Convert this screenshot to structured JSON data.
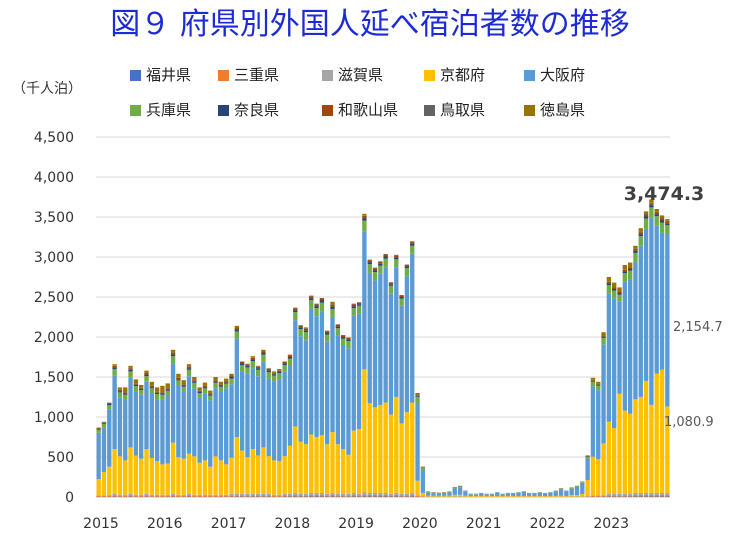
{
  "title": "図９ 府県別外国人延べ宿泊者数の推移",
  "unit_label": "（千人泊）",
  "colors": {
    "title": "#1d2bd6",
    "axis_text": "#333333",
    "grid": "#d9d9d9"
  },
  "legend": [
    {
      "name": "福井県",
      "color": "#4472c4"
    },
    {
      "name": "三重県",
      "color": "#ed7d31"
    },
    {
      "name": "滋賀県",
      "color": "#a5a5a5"
    },
    {
      "name": "京都府",
      "color": "#ffc000"
    },
    {
      "name": "大阪府",
      "color": "#5b9bd5"
    },
    {
      "name": "兵庫県",
      "color": "#70ad47"
    },
    {
      "name": "奈良県",
      "color": "#264478"
    },
    {
      "name": "和歌山県",
      "color": "#9e480e"
    },
    {
      "name": "鳥取県",
      "color": "#636363"
    },
    {
      "name": "徳島県",
      "color": "#997300"
    }
  ],
  "annotations": {
    "total_last": "3,474.3",
    "osaka_last": "2,154.7",
    "kyoto_last": "1,080.9"
  },
  "chart_data": {
    "type": "bar",
    "stacked": true,
    "ylim": [
      0,
      4500
    ],
    "yticks": [
      "0",
      "500",
      "1,000",
      "1,500",
      "2,000",
      "2,500",
      "3,000",
      "3,500",
      "4,000",
      "4,500"
    ],
    "ytick_values": [
      0,
      500,
      1000,
      1500,
      2000,
      2500,
      3000,
      3500,
      4000,
      4500
    ],
    "xticks": [
      "2015",
      "2016",
      "2017",
      "2018",
      "2019",
      "2020",
      "2021",
      "2022",
      "2023"
    ],
    "start": "2015-01",
    "bar_count": 108,
    "grid": "horizontal",
    "legend_position": "top",
    "series_order": [
      "福井県",
      "三重県",
      "滋賀県",
      "京都府",
      "大阪府",
      "兵庫県",
      "奈良県",
      "和歌山県",
      "鳥取県",
      "徳島県"
    ],
    "totals": [
      870,
      940,
      1180,
      1660,
      1370,
      1370,
      1640,
      1470,
      1400,
      1580,
      1440,
      1370,
      1390,
      1420,
      1840,
      1540,
      1460,
      1660,
      1500,
      1370,
      1430,
      1330,
      1500,
      1440,
      1480,
      1540,
      2140,
      1680,
      1650,
      1760,
      1640,
      1840,
      1610,
      1570,
      1600,
      1690,
      1780,
      2360,
      2150,
      2120,
      2510,
      2410,
      2480,
      2080,
      2440,
      2160,
      2010,
      1980,
      2400,
      2430,
      3540,
      2930,
      2830,
      2910,
      3000,
      2670,
      2990,
      2510,
      2890,
      3160,
      1300,
      380,
      70,
      60,
      50,
      60,
      70,
      120,
      140,
      80,
      40,
      40,
      50,
      40,
      40,
      60,
      40,
      50,
      50,
      60,
      70,
      50,
      50,
      60,
      50,
      60,
      80,
      110,
      80,
      120,
      140,
      190,
      520,
      1490,
      1440,
      2060,
      2750,
      2680,
      2620,
      2900,
      2930,
      3140,
      3360,
      3570,
      3720,
      3600,
      3520,
      3474
    ],
    "kyoto": [
      200,
      290,
      350,
      560,
      480,
      430,
      580,
      490,
      450,
      560,
      460,
      420,
      380,
      390,
      640,
      470,
      450,
      500,
      480,
      400,
      430,
      350,
      480,
      430,
      380,
      450,
      710,
      540,
      460,
      560,
      480,
      580,
      470,
      430,
      420,
      470,
      600,
      830,
      650,
      620,
      730,
      700,
      720,
      620,
      760,
      620,
      560,
      490,
      780,
      810,
      1540,
      1120,
      1070,
      1100,
      1130,
      990,
      1200,
      880,
      1020,
      1130,
      180,
      40,
      10,
      10,
      10,
      10,
      10,
      20,
      20,
      10,
      10,
      10,
      10,
      10,
      10,
      10,
      10,
      10,
      10,
      10,
      10,
      10,
      10,
      10,
      10,
      10,
      10,
      10,
      10,
      20,
      20,
      30,
      200,
      480,
      450,
      640,
      900,
      820,
      1250,
      1040,
      1000,
      1170,
      1200,
      1400,
      1100,
      1490,
      1540,
      1081
    ],
    "osaka": [
      580,
      560,
      720,
      920,
      740,
      760,
      870,
      800,
      800,
      840,
      800,
      770,
      810,
      850,
      990,
      890,
      840,
      970,
      850,
      810,
      840,
      830,
      850,
      860,
      950,
      920,
      1230,
      990,
      1040,
      1010,
      990,
      1070,
      970,
      990,
      1020,
      1060,
      1010,
      1330,
      1320,
      1300,
      1570,
      1510,
      1550,
      1280,
      1440,
      1360,
      1300,
      1330,
      1440,
      1440,
      1720,
      1630,
      1590,
      1640,
      1690,
      1510,
      1620,
      1470,
      1700,
      1860,
      960,
      280,
      40,
      30,
      30,
      30,
      40,
      80,
      90,
      50,
      20,
      20,
      30,
      20,
      20,
      40,
      20,
      30,
      30,
      40,
      50,
      30,
      30,
      40,
      30,
      40,
      60,
      80,
      60,
      80,
      100,
      140,
      270,
      880,
      860,
      1240,
      1600,
      1620,
      1150,
      1610,
      1680,
      1710,
      1890,
      1900,
      2340,
      1850,
      1710,
      2155
    ],
    "hyogo": [
      40,
      40,
      50,
      80,
      60,
      60,
      80,
      70,
      60,
      70,
      70,
      70,
      60,
      60,
      90,
      70,
      60,
      80,
      70,
      60,
      60,
      60,
      70,
      60,
      60,
      70,
      90,
      80,
      80,
      90,
      80,
      90,
      80,
      70,
      80,
      80,
      80,
      100,
      90,
      100,
      110,
      100,
      110,
      90,
      100,
      90,
      80,
      90,
      90,
      100,
      140,
      110,
      100,
      100,
      110,
      100,
      100,
      90,
      100,
      100,
      90,
      30,
      10,
      10,
      5,
      5,
      10,
      10,
      15,
      10,
      5,
      5,
      5,
      5,
      5,
      5,
      5,
      5,
      5,
      5,
      5,
      5,
      5,
      5,
      5,
      5,
      5,
      10,
      5,
      10,
      10,
      10,
      20,
      60,
      60,
      80,
      110,
      100,
      90,
      110,
      110,
      120,
      120,
      130,
      130,
      120,
      130,
      110
    ],
    "wakayama": [
      10,
      10,
      15,
      20,
      15,
      15,
      20,
      15,
      15,
      20,
      15,
      15,
      15,
      15,
      20,
      15,
      15,
      20,
      15,
      15,
      15,
      15,
      15,
      15,
      15,
      20,
      25,
      20,
      20,
      20,
      20,
      20,
      20,
      15,
      15,
      20,
      20,
      25,
      20,
      20,
      25,
      25,
      25,
      20,
      25,
      20,
      20,
      20,
      25,
      20,
      30,
      25,
      25,
      25,
      25,
      20,
      25,
      20,
      20,
      25,
      10,
      5,
      2,
      2,
      2,
      2,
      2,
      3,
      3,
      2,
      1,
      1,
      1,
      1,
      1,
      1,
      1,
      1,
      1,
      1,
      1,
      1,
      1,
      1,
      1,
      1,
      1,
      2,
      1,
      2,
      2,
      3,
      5,
      10,
      10,
      15,
      20,
      20,
      20,
      20,
      20,
      25,
      25,
      25,
      25,
      25,
      25,
      25
    ],
    "nara": [
      10,
      10,
      15,
      20,
      15,
      15,
      20,
      15,
      15,
      20,
      15,
      15,
      15,
      15,
      20,
      15,
      15,
      20,
      15,
      15,
      15,
      15,
      15,
      15,
      15,
      20,
      25,
      20,
      20,
      20,
      20,
      20,
      20,
      15,
      15,
      20,
      20,
      25,
      20,
      20,
      25,
      25,
      25,
      20,
      25,
      20,
      20,
      20,
      25,
      20,
      30,
      25,
      25,
      25,
      25,
      20,
      25,
      20,
      20,
      25,
      10,
      5,
      2,
      2,
      2,
      2,
      2,
      3,
      3,
      2,
      1,
      1,
      1,
      1,
      1,
      1,
      1,
      1,
      1,
      1,
      1,
      1,
      1,
      1,
      1,
      1,
      1,
      2,
      1,
      2,
      2,
      3,
      5,
      10,
      10,
      15,
      20,
      20,
      20,
      20,
      20,
      25,
      25,
      25,
      25,
      25,
      25,
      25
    ],
    "shiga": [
      10,
      10,
      15,
      20,
      15,
      15,
      20,
      15,
      15,
      20,
      15,
      15,
      15,
      15,
      20,
      15,
      15,
      20,
      15,
      15,
      15,
      15,
      15,
      15,
      15,
      20,
      20,
      20,
      20,
      20,
      20,
      20,
      20,
      15,
      15,
      20,
      20,
      25,
      20,
      20,
      25,
      25,
      25,
      20,
      25,
      20,
      20,
      20,
      25,
      20,
      30,
      25,
      25,
      25,
      25,
      20,
      25,
      20,
      20,
      25,
      10,
      5,
      2,
      2,
      2,
      2,
      2,
      3,
      3,
      2,
      1,
      1,
      1,
      1,
      1,
      1,
      1,
      1,
      1,
      1,
      1,
      1,
      1,
      1,
      1,
      1,
      1,
      2,
      1,
      2,
      2,
      3,
      5,
      10,
      10,
      15,
      20,
      20,
      20,
      20,
      20,
      25,
      25,
      25,
      25,
      25,
      25,
      25
    ],
    "mie": [
      10,
      10,
      10,
      15,
      10,
      10,
      15,
      10,
      10,
      15,
      10,
      10,
      10,
      10,
      15,
      10,
      10,
      15,
      10,
      10,
      10,
      10,
      10,
      10,
      10,
      15,
      15,
      15,
      15,
      15,
      15,
      15,
      15,
      10,
      10,
      15,
      15,
      20,
      15,
      15,
      20,
      20,
      20,
      15,
      20,
      15,
      15,
      15,
      20,
      15,
      20,
      20,
      20,
      20,
      20,
      15,
      20,
      15,
      15,
      20,
      10,
      5,
      2,
      2,
      2,
      2,
      2,
      3,
      3,
      2,
      1,
      1,
      1,
      1,
      1,
      1,
      1,
      1,
      1,
      1,
      1,
      1,
      1,
      1,
      1,
      1,
      1,
      2,
      1,
      2,
      2,
      3,
      5,
      10,
      10,
      10,
      15,
      15,
      15,
      15,
      15,
      20,
      20,
      20,
      20,
      20,
      20,
      20
    ],
    "fukui": [
      3,
      3,
      3,
      5,
      3,
      3,
      5,
      3,
      3,
      5,
      3,
      3,
      3,
      3,
      5,
      3,
      3,
      5,
      3,
      3,
      3,
      3,
      3,
      3,
      3,
      5,
      5,
      5,
      5,
      5,
      5,
      5,
      5,
      3,
      3,
      5,
      5,
      6,
      5,
      5,
      6,
      6,
      6,
      5,
      6,
      5,
      5,
      5,
      6,
      5,
      6,
      6,
      6,
      6,
      6,
      5,
      6,
      5,
      5,
      6,
      3,
      1,
      1,
      1,
      1,
      1,
      1,
      1,
      1,
      1,
      1,
      1,
      1,
      1,
      1,
      1,
      1,
      1,
      1,
      1,
      1,
      1,
      1,
      1,
      1,
      1,
      1,
      1,
      1,
      1,
      1,
      1,
      1,
      3,
      3,
      4,
      5,
      5,
      5,
      5,
      5,
      6,
      6,
      6,
      6,
      6,
      6,
      6
    ],
    "tottori": [
      3,
      3,
      3,
      5,
      3,
      3,
      5,
      3,
      3,
      5,
      3,
      3,
      3,
      3,
      5,
      3,
      3,
      5,
      3,
      3,
      3,
      3,
      3,
      3,
      3,
      5,
      5,
      5,
      5,
      5,
      5,
      5,
      5,
      3,
      3,
      5,
      5,
      6,
      5,
      5,
      6,
      6,
      6,
      5,
      6,
      5,
      5,
      5,
      6,
      5,
      6,
      6,
      6,
      6,
      6,
      5,
      6,
      5,
      5,
      6,
      3,
      1,
      1,
      1,
      1,
      1,
      1,
      1,
      1,
      1,
      1,
      1,
      1,
      1,
      1,
      1,
      1,
      1,
      1,
      1,
      1,
      1,
      1,
      1,
      1,
      1,
      1,
      1,
      1,
      1,
      1,
      1,
      1,
      3,
      3,
      4,
      5,
      5,
      5,
      5,
      5,
      6,
      6,
      6,
      6,
      6,
      6,
      6
    ]
  }
}
